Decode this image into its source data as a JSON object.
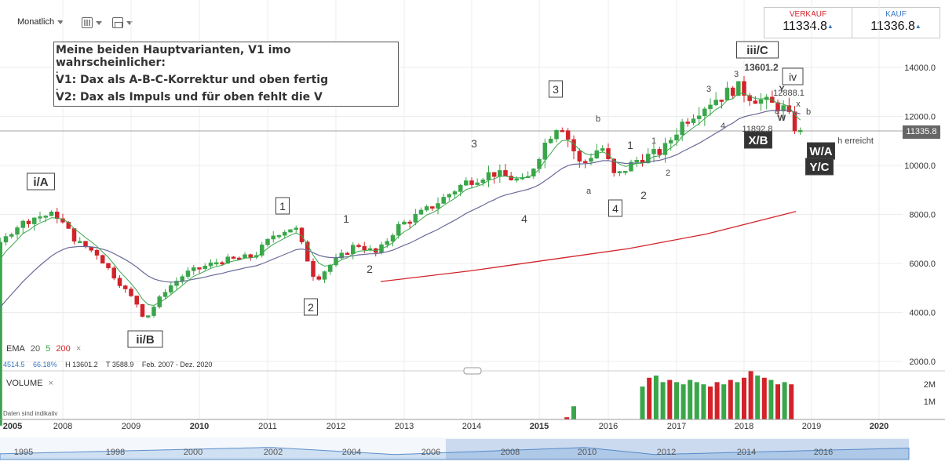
{
  "toolbar": {
    "interval": "Monatlich",
    "grid_icon": "grid-icon",
    "compare_icon": "compare-icon"
  },
  "quote": {
    "sell_label": "VERKAUF",
    "sell_value": "11334.8",
    "buy_label": "KAUF",
    "buy_value": "11336.8",
    "arrow": "▲",
    "sell_color": "#d2232a",
    "buy_color": "#3a78c3"
  },
  "note": {
    "line1": "Meine beiden Hauptvarianten, V1 imo wahrscheinlicher:",
    "dot": ".",
    "line2": "V1: Dax als A-B-C-Korrektur und oben fertig",
    "line3": "V2: Dax als Impuls und für oben fehlt die V"
  },
  "indicators": {
    "ema_label": "EMA",
    "ema_a": "20",
    "ema_b": "5",
    "ema_c": "200",
    "close": "×",
    "last": "4514.5",
    "change": "66.18%",
    "high": "H 13601.2",
    "low": "T 3588.9",
    "range": "Feb. 2007 - Dez. 2020",
    "volume_label": "VOLUME",
    "data_note": "Daten sind indikativ"
  },
  "current_price": "11335.8",
  "chart_data": {
    "type": "candlestick",
    "title": "",
    "yaxis_ticks": [
      "14000.0",
      "12000.0",
      "10000.0",
      "8000.0",
      "6000.0",
      "4000.0",
      "2000.0"
    ],
    "ylim": [
      2000,
      14000
    ],
    "volume_ticks": [
      "2M",
      "1M"
    ],
    "xaxis_ticks": [
      "2005",
      "2008",
      "2009",
      "2010",
      "2011",
      "2012",
      "2013",
      "2014",
      "2015",
      "2016",
      "2017",
      "2018",
      "2019",
      "2020"
    ],
    "navigator_ticks": [
      "1995",
      "1998",
      "2000",
      "2002",
      "2004",
      "2006",
      "2008",
      "2010",
      "2012",
      "2014",
      "2016"
    ],
    "colors": {
      "up": "#3aa64a",
      "down": "#d2232a",
      "ema20": "#6a6a9a",
      "ema5": "#3aa64a",
      "ema200": "#d2232a"
    },
    "series": [
      {
        "name": "DAX monthly",
        "points": [
          [
            2007.1,
            6800
          ],
          [
            2007.3,
            7500
          ],
          [
            2007.6,
            7900
          ],
          [
            2007.9,
            8000
          ],
          [
            2008.2,
            6900
          ],
          [
            2008.5,
            6400
          ],
          [
            2008.8,
            5300
          ],
          [
            2009.1,
            4300
          ],
          [
            2009.2,
            3700
          ],
          [
            2009.5,
            4900
          ],
          [
            2009.8,
            5600
          ],
          [
            2010.3,
            6100
          ],
          [
            2010.8,
            6300
          ],
          [
            2011.1,
            7200
          ],
          [
            2011.4,
            7500
          ],
          [
            2011.7,
            5300
          ],
          [
            2011.9,
            5900
          ],
          [
            2012.3,
            6800
          ],
          [
            2012.6,
            6400
          ],
          [
            2012.9,
            7500
          ],
          [
            2013.4,
            8300
          ],
          [
            2013.9,
            9300
          ],
          [
            2014.3,
            9700
          ],
          [
            2014.8,
            9300
          ],
          [
            2015.1,
            11000
          ],
          [
            2015.3,
            11800
          ],
          [
            2015.6,
            10000
          ],
          [
            2015.9,
            10800
          ],
          [
            2016.1,
            9500
          ],
          [
            2016.4,
            10200
          ],
          [
            2016.8,
            10600
          ],
          [
            2017.1,
            11800
          ],
          [
            2017.5,
            12600
          ],
          [
            2017.9,
            13200
          ],
          [
            2018.1,
            12800
          ],
          [
            2018.4,
            12500
          ],
          [
            2018.6,
            12300
          ],
          [
            2018.8,
            11300
          ]
        ]
      }
    ],
    "volume_bars": [
      {
        "x": 2015.4,
        "v": 0.1,
        "dir": "down"
      },
      {
        "x": 2015.5,
        "v": 0.6,
        "dir": "up"
      },
      {
        "x": 2016.5,
        "v": 1.5,
        "dir": "up"
      },
      {
        "x": 2016.6,
        "v": 1.9,
        "dir": "down"
      },
      {
        "x": 2016.7,
        "v": 2.0,
        "dir": "up"
      },
      {
        "x": 2016.8,
        "v": 1.7,
        "dir": "up"
      },
      {
        "x": 2016.9,
        "v": 1.8,
        "dir": "down"
      },
      {
        "x": 2017.0,
        "v": 1.7,
        "dir": "up"
      },
      {
        "x": 2017.1,
        "v": 1.6,
        "dir": "up"
      },
      {
        "x": 2017.2,
        "v": 1.8,
        "dir": "up"
      },
      {
        "x": 2017.3,
        "v": 1.7,
        "dir": "up"
      },
      {
        "x": 2017.4,
        "v": 1.6,
        "dir": "up"
      },
      {
        "x": 2017.5,
        "v": 1.5,
        "dir": "down"
      },
      {
        "x": 2017.6,
        "v": 1.7,
        "dir": "down"
      },
      {
        "x": 2017.7,
        "v": 1.6,
        "dir": "up"
      },
      {
        "x": 2017.8,
        "v": 1.8,
        "dir": "down"
      },
      {
        "x": 2017.9,
        "v": 1.7,
        "dir": "up"
      },
      {
        "x": 2018.0,
        "v": 1.9,
        "dir": "down"
      },
      {
        "x": 2018.1,
        "v": 2.2,
        "dir": "down"
      },
      {
        "x": 2018.2,
        "v": 2.0,
        "dir": "up"
      },
      {
        "x": 2018.3,
        "v": 1.9,
        "dir": "down"
      },
      {
        "x": 2018.4,
        "v": 1.8,
        "dir": "up"
      },
      {
        "x": 2018.5,
        "v": 1.6,
        "dir": "down"
      },
      {
        "x": 2018.6,
        "v": 1.7,
        "dir": "up"
      },
      {
        "x": 2018.7,
        "v": 1.6,
        "dir": "down"
      }
    ],
    "annotations": {
      "boxed": [
        "i/A",
        "ii/B",
        "1",
        "2",
        "3",
        "4",
        "iii/C",
        "iv",
        "X/B",
        "W/A",
        "Y/C"
      ],
      "plain": [
        "1",
        "2",
        "3",
        "4",
        "b",
        "a",
        "1",
        "2",
        "1",
        "2",
        "3",
        "3",
        "4",
        "13601.2",
        "12888.1",
        "11892.8",
        "W",
        "x",
        "b",
        "Y",
        "a",
        "h erreicht"
      ]
    }
  }
}
